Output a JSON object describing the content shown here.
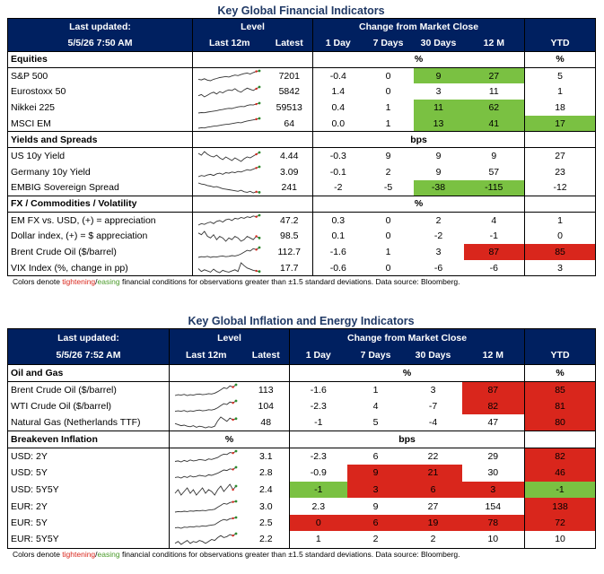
{
  "t1": {
    "title": "Key Global Financial Indicators",
    "h_last_updated": "Last updated:",
    "h_date": "5/5/26 7:50 AM",
    "h_level": "Level",
    "h_change": "Change from Market Close",
    "h_last12": "Last 12m",
    "h_latest": "Latest",
    "h_1d": "1 Day",
    "h_7d": "7 Days",
    "h_30d": "30 Days",
    "h_12m": "12 M",
    "h_ytd": "YTD",
    "sections": [
      {
        "name": "Equities",
        "unit": "%",
        "unit_ytd": "%",
        "rows": [
          {
            "label": "S&P 500",
            "latest": "7201",
            "d1": "-0.4",
            "d7": "0",
            "d30": "9",
            "m12": "27",
            "ytd": "5",
            "c30": "green",
            "c12": "green",
            "cy": "",
            "spark": [
              30,
              28,
              32,
              27,
              25,
              30,
              33,
              36,
              38,
              40,
              38,
              42,
              45,
              43,
              47,
              50,
              52,
              49,
              54,
              58,
              60
            ]
          },
          {
            "label": "Eurostoxx 50",
            "latest": "5842",
            "d1": "1.4",
            "d7": "0",
            "d30": "3",
            "m12": "11",
            "ytd": "1",
            "c30": "",
            "c12": "",
            "cy": "",
            "spark": [
              40,
              42,
              38,
              41,
              44,
              46,
              43,
              47,
              45,
              48,
              50,
              49,
              52,
              48,
              46,
              50,
              53,
              51,
              49,
              52,
              55
            ]
          },
          {
            "label": "Nikkei 225",
            "latest": "59513",
            "d1": "0.4",
            "d7": "1",
            "d30": "11",
            "m12": "62",
            "ytd": "18",
            "c30": "green",
            "c12": "green",
            "cy": "",
            "spark": [
              20,
              22,
              21,
              24,
              26,
              28,
              30,
              33,
              35,
              38,
              40,
              39,
              43,
              46,
              48,
              47,
              52,
              55,
              54,
              58,
              62
            ]
          },
          {
            "label": "MSCI EM",
            "latest": "64",
            "d1": "0.0",
            "d7": "1",
            "d30": "13",
            "m12": "41",
            "ytd": "17",
            "c30": "green",
            "c12": "green",
            "cy": "green",
            "spark": [
              22,
              24,
              23,
              26,
              28,
              30,
              31,
              33,
              35,
              37,
              38,
              40,
              42,
              44,
              43,
              47,
              50,
              52,
              54,
              57,
              60
            ]
          }
        ]
      },
      {
        "name": "Yields and Spreads",
        "unit": "bps",
        "unit_ytd": "",
        "rows": [
          {
            "label": "US 10y Yield",
            "latest": "4.44",
            "d1": "-0.3",
            "d7": "9",
            "d30": "9",
            "m12": "9",
            "ytd": "27",
            "c30": "",
            "c12": "",
            "cy": "",
            "spark": [
              48,
              46,
              50,
              47,
              45,
              44,
              46,
              43,
              41,
              44,
              42,
              40,
              43,
              41,
              39,
              42,
              44,
              43,
              45,
              47,
              49
            ]
          },
          {
            "label": "Germany 10y Yield",
            "latest": "3.09",
            "d1": "-0.1",
            "d7": "2",
            "d30": "9",
            "m12": "57",
            "ytd": "23",
            "c30": "",
            "c12": "",
            "cy": "",
            "spark": [
              38,
              40,
              39,
              41,
              42,
              40,
              43,
              44,
              42,
              45,
              44,
              46,
              45,
              47,
              46,
              48,
              50,
              49,
              51,
              53,
              55
            ]
          },
          {
            "label": "EMBIG Sovereign Spread",
            "latest": "241",
            "d1": "-2",
            "d7": "-5",
            "d30": "-38",
            "m12": "-115",
            "ytd": "-12",
            "c30": "green",
            "c12": "green",
            "cy": "",
            "spark": [
              58,
              56,
              55,
              53,
              52,
              50,
              51,
              49,
              47,
              46,
              45,
              44,
              43,
              42,
              44,
              41,
              40,
              42,
              39,
              41,
              40
            ]
          }
        ]
      },
      {
        "name": "FX / Commodities / Volatility",
        "unit": "%",
        "unit_ytd": "",
        "rows": [
          {
            "label": "EM FX vs. USD, (+) = appreciation",
            "latest": "47.2",
            "d1": "0.3",
            "d7": "0",
            "d30": "2",
            "m12": "4",
            "ytd": "1",
            "c30": "",
            "c12": "",
            "cy": "",
            "spark": [
              40,
              42,
              41,
              43,
              44,
              42,
              45,
              46,
              44,
              47,
              48,
              46,
              49,
              48,
              50,
              49,
              51,
              50,
              52,
              51,
              53
            ]
          },
          {
            "label": "Dollar index, (+) = $ appreciation",
            "latest": "98.5",
            "d1": "0.1",
            "d7": "0",
            "d30": "-2",
            "m12": "-1",
            "ytd": "0",
            "c30": "",
            "c12": "",
            "cy": "",
            "spark": [
              50,
              49,
              51,
              48,
              47,
              49,
              46,
              48,
              47,
              45,
              47,
              46,
              48,
              47,
              45,
              46,
              48,
              47,
              46,
              48,
              47
            ]
          },
          {
            "label": "Brent Crude Oil ($/barrel)",
            "latest": "112.7",
            "d1": "-1.6",
            "d7": "1",
            "d30": "3",
            "m12": "87",
            "ytd": "85",
            "c30": "",
            "c12": "red",
            "cy": "red",
            "spark": [
              30,
              32,
              31,
              33,
              30,
              32,
              31,
              33,
              34,
              32,
              33,
              35,
              34,
              36,
              40,
              45,
              50,
              48,
              55,
              52,
              58
            ]
          },
          {
            "label": "VIX Index (%, change in pp)",
            "latest": "17.7",
            "d1": "-0.6",
            "d7": "0",
            "d30": "-6",
            "m12": "-6",
            "ytd": "3",
            "c30": "",
            "c12": "",
            "cy": "",
            "spark": [
              35,
              30,
              33,
              31,
              29,
              34,
              30,
              28,
              32,
              30,
              29,
              31,
              33,
              30,
              45,
              40,
              36,
              34,
              32,
              31,
              30
            ]
          }
        ]
      }
    ],
    "note_prefix": "Colors denote ",
    "note_tight": "tightening",
    "note_slash": "/",
    "note_ease": "easing",
    "note_suffix": " financial conditions for observations greater than ±1.5 standard deviations. Data source: Bloomberg."
  },
  "t2": {
    "title": "Key Global Inflation and Energy Indicators",
    "h_last_updated": "Last updated:",
    "h_date": "5/5/26 7:52 AM",
    "h_level": "Level",
    "h_change": "Change from Market Close",
    "h_last12": "Last 12m",
    "h_latest": "Latest",
    "h_1d": "1 Day",
    "h_7d": "7 Days",
    "h_30d": "30 Days",
    "h_12m": "12 M",
    "h_ytd": "YTD",
    "sections": [
      {
        "name": "Oil and Gas",
        "unit_level": "",
        "unit": "%",
        "unit_ytd": "%",
        "rows": [
          {
            "label": "Brent Crude Oil ($/barrel)",
            "latest": "113",
            "d1": "-1.6",
            "d7": "1",
            "d30": "3",
            "m12": "87",
            "ytd": "85",
            "c1": "",
            "c7": "",
            "c30": "",
            "c12": "red",
            "cy": "red",
            "spark": [
              30,
              32,
              31,
              33,
              30,
              32,
              31,
              33,
              34,
              32,
              33,
              35,
              34,
              36,
              40,
              45,
              50,
              48,
              55,
              52,
              58
            ]
          },
          {
            "label": "WTI Crude Oil ($/barrel)",
            "latest": "104",
            "d1": "-2.3",
            "d7": "4",
            "d30": "-7",
            "m12": "82",
            "ytd": "81",
            "c1": "",
            "c7": "",
            "c30": "",
            "c12": "red",
            "cy": "red",
            "spark": [
              30,
              31,
              30,
              32,
              29,
              31,
              30,
              32,
              33,
              31,
              32,
              34,
              33,
              35,
              39,
              44,
              49,
              47,
              53,
              51,
              56
            ]
          },
          {
            "label": "Natural Gas (Netherlands TTF)",
            "latest": "48",
            "d1": "-1",
            "d7": "5",
            "d30": "-4",
            "m12": "47",
            "ytd": "80",
            "c1": "",
            "c7": "",
            "c30": "",
            "c12": "",
            "cy": "red",
            "spark": [
              40,
              38,
              36,
              37,
              35,
              34,
              36,
              33,
              35,
              34,
              32,
              34,
              33,
              35,
              45,
              52,
              48,
              44,
              50,
              47,
              49
            ]
          }
        ]
      },
      {
        "name": "Breakeven Inflation",
        "unit_level": "%",
        "unit": "bps",
        "unit_ytd": "",
        "rows": [
          {
            "label": "USD: 2Y",
            "latest": "3.1",
            "d1": "-2.3",
            "d7": "6",
            "d30": "22",
            "m12": "29",
            "ytd": "82",
            "c1": "",
            "c7": "",
            "c30": "",
            "c12": "",
            "cy": "red",
            "spark": [
              35,
              36,
              34,
              37,
              35,
              38,
              36,
              37,
              39,
              38,
              37,
              40,
              39,
              41,
              43,
              47,
              50,
              49,
              53,
              52,
              56
            ]
          },
          {
            "label": "USD: 5Y",
            "latest": "2.8",
            "d1": "-0.9",
            "d7": "9",
            "d30": "21",
            "m12": "30",
            "ytd": "46",
            "c1": "",
            "c7": "red",
            "c30": "red",
            "c12": "",
            "cy": "red",
            "spark": [
              38,
              39,
              37,
              40,
              38,
              41,
              39,
              40,
              42,
              41,
              40,
              43,
              42,
              44,
              46,
              49,
              52,
              51,
              54,
              53,
              57
            ]
          },
          {
            "label": "USD: 5Y5Y",
            "latest": "2.4",
            "d1": "-1",
            "d7": "3",
            "d30": "6",
            "m12": "3",
            "ytd": "-1",
            "c1": "green",
            "c7": "red",
            "c30": "red",
            "c12": "red",
            "cy": "green",
            "spark": [
              45,
              47,
              44,
              46,
              48,
              45,
              47,
              44,
              46,
              48,
              45,
              47,
              46,
              44,
              47,
              49,
              46,
              48,
              50,
              47,
              49
            ]
          },
          {
            "label": "EUR: 2Y",
            "latest": "3.0",
            "d1": "2.3",
            "d7": "9",
            "d30": "27",
            "m12": "154",
            "ytd": "138",
            "c1": "",
            "c7": "",
            "c30": "",
            "c12": "",
            "cy": "red",
            "spark": [
              25,
              27,
              26,
              28,
              27,
              29,
              28,
              30,
              29,
              31,
              30,
              32,
              33,
              35,
              42,
              48,
              55,
              52,
              58,
              60,
              62
            ]
          },
          {
            "label": "EUR: 5Y",
            "latest": "2.5",
            "d1": "0",
            "d7": "6",
            "d30": "19",
            "m12": "78",
            "ytd": "72",
            "c1": "red",
            "c7": "red",
            "c30": "red",
            "c12": "red",
            "cy": "red",
            "spark": [
              32,
              33,
              31,
              34,
              33,
              35,
              34,
              36,
              35,
              37,
              36,
              38,
              39,
              40,
              45,
              50,
              53,
              51,
              55,
              56,
              58
            ]
          },
          {
            "label": "EUR: 5Y5Y",
            "latest": "2.2",
            "d1": "1",
            "d7": "2",
            "d30": "2",
            "m12": "10",
            "ytd": "10",
            "c1": "",
            "c7": "",
            "c30": "",
            "c12": "",
            "cy": "",
            "spark": [
              42,
              44,
              41,
              43,
              45,
              42,
              44,
              43,
              45,
              44,
              42,
              44,
              46,
              45,
              48,
              50,
              48,
              49,
              51,
              50,
              52
            ]
          }
        ]
      }
    ],
    "note_prefix": "Colors denote ",
    "note_tight": "tightening",
    "note_slash": "/",
    "note_ease": "easing",
    "note_suffix": " financial conditions for observations greater than ±1.5 standard deviations. Data source: Bloomberg."
  }
}
